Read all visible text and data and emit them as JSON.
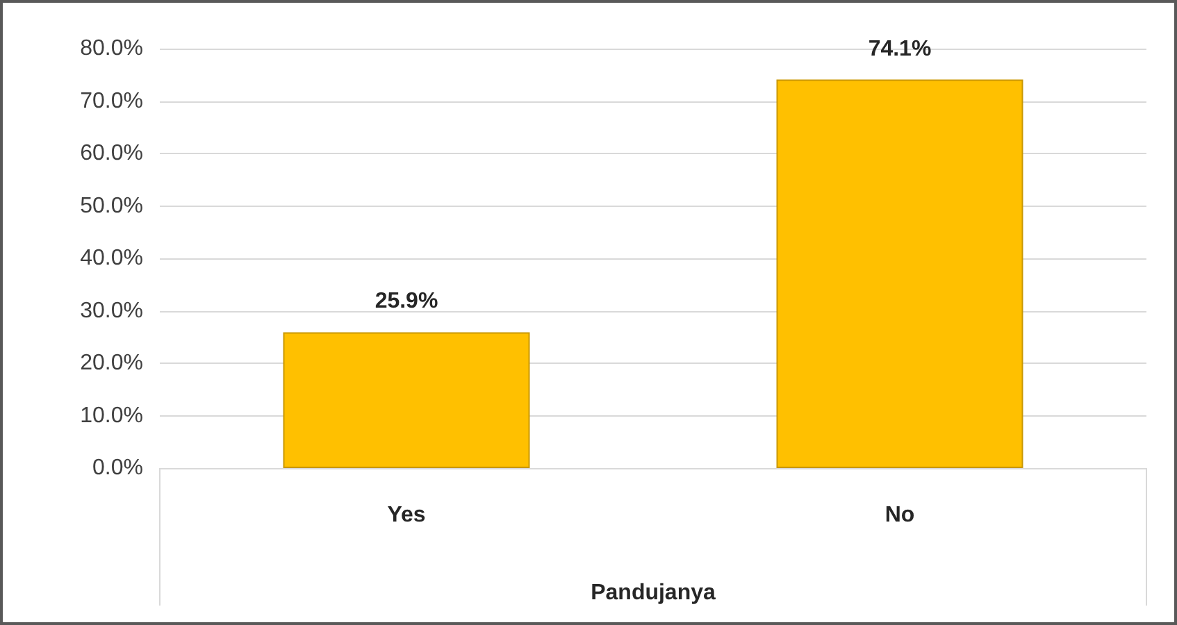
{
  "chart_data": {
    "type": "bar",
    "xlabel": "Pandujanya",
    "categories": [
      "Yes",
      "No"
    ],
    "values": [
      25.9,
      74.1
    ],
    "color": "#ffc000",
    "value_labels": [
      "25.9%",
      "74.1%"
    ],
    "ylim": [
      0,
      80
    ],
    "yticks": [
      {
        "value": 0,
        "label": "0.0%"
      },
      {
        "value": 10,
        "label": "10.0%"
      },
      {
        "value": 20,
        "label": "20.0%"
      },
      {
        "value": 30,
        "label": "30.0%"
      },
      {
        "value": 40,
        "label": "40.0%"
      },
      {
        "value": 50,
        "label": "50.0%"
      },
      {
        "value": 60,
        "label": "60.0%"
      },
      {
        "value": 70,
        "label": "70.0%"
      },
      {
        "value": 80,
        "label": "80.0%"
      }
    ],
    "grid": "y"
  }
}
